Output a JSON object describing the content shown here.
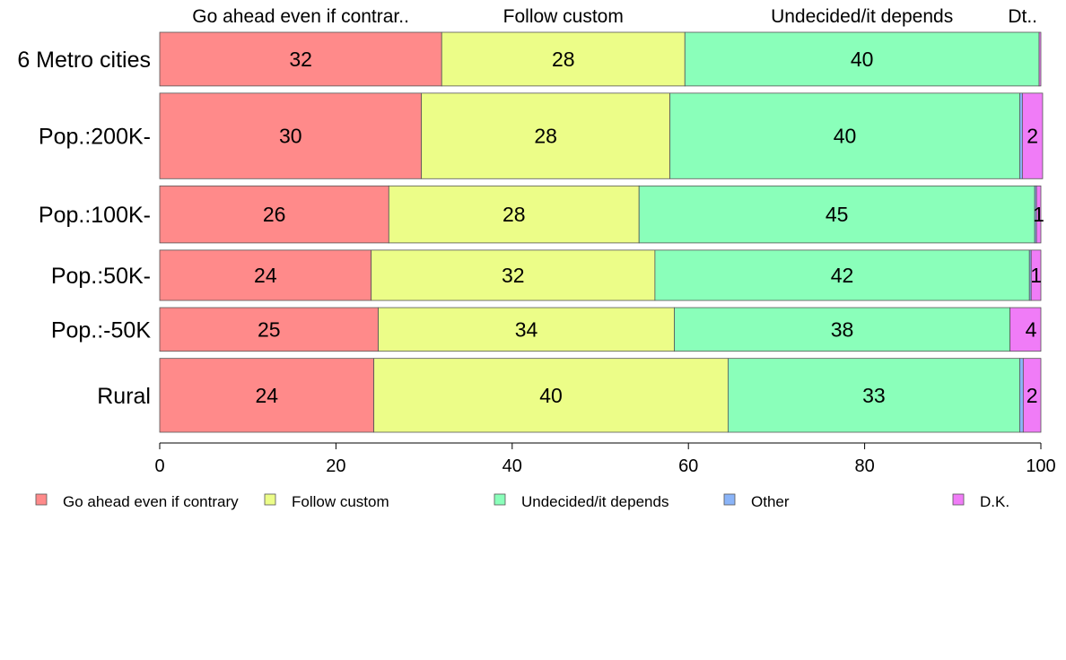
{
  "chart_data": {
    "type": "bar",
    "orientation": "horizontal",
    "stacked": true,
    "percent_scale": true,
    "xlim": [
      0,
      100
    ],
    "xticks": [
      0,
      20,
      40,
      60,
      80,
      100
    ],
    "grid": false,
    "legend_position": "bottom",
    "top_labels": [
      "Go ahead even if contrar..",
      "Follow custom",
      "Undecided/it depends",
      "Dt.."
    ],
    "categories": [
      "6 Metro cities",
      "Pop.:200K-",
      "Pop.:100K-",
      "Pop.:50K-",
      "Pop.:-50K",
      "Rural"
    ],
    "series": [
      {
        "name": "Go ahead even if contrary",
        "color": "#ff8a8a",
        "values": [
          32,
          29.7,
          26,
          24,
          24.8,
          24.3
        ]
      },
      {
        "name": "Follow custom",
        "color": "#ecfd88",
        "values": [
          27.6,
          28.2,
          28.4,
          32.2,
          33.6,
          40.2
        ]
      },
      {
        "name": "Undecided/it depends",
        "color": "#8affba",
        "values": [
          40.2,
          39.7,
          44.9,
          42.5,
          38.1,
          33.1
        ]
      },
      {
        "name": "Other",
        "color": "#8ab4f8",
        "values": [
          0,
          0.3,
          0.2,
          0.2,
          0,
          0.4
        ]
      },
      {
        "name": "D.K.",
        "color": "#f07cf7",
        "values": [
          0.2,
          2.3,
          0.5,
          1.1,
          3.5,
          2.0
        ]
      }
    ],
    "value_labels": [
      [
        "32",
        "28",
        "40",
        "",
        ""
      ],
      [
        "30",
        "28",
        "40",
        "",
        "2"
      ],
      [
        "26",
        "28",
        "45",
        "",
        "1"
      ],
      [
        "24",
        "32",
        "42",
        "",
        "1"
      ],
      [
        "25",
        "34",
        "38",
        "",
        "4"
      ],
      [
        "24",
        "40",
        "33",
        "",
        "2"
      ]
    ],
    "row_weights": [
      32,
      51,
      34,
      30,
      26,
      44
    ]
  }
}
